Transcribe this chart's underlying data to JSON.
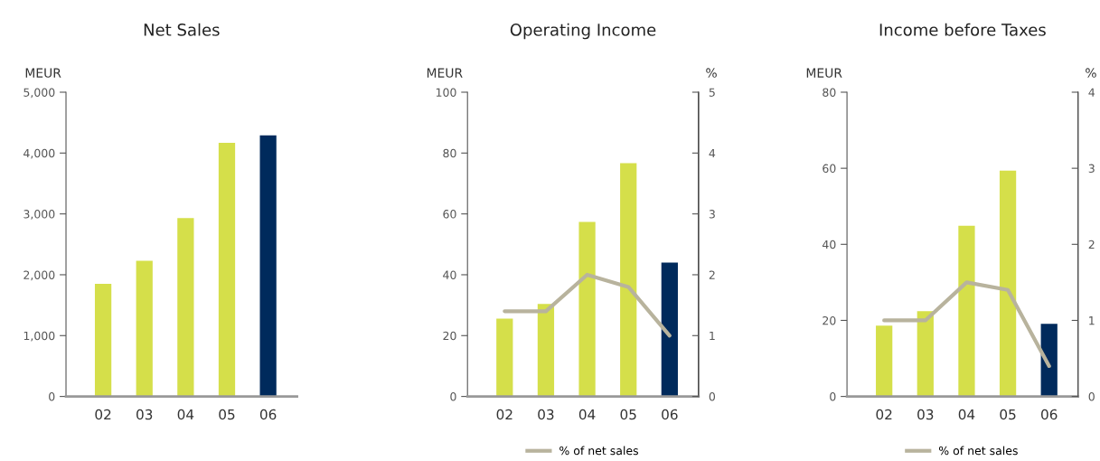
{
  "chart_data": [
    {
      "type": "bar",
      "title": "Net Sales",
      "ylabel": "MEUR",
      "categories": [
        "02",
        "03",
        "04",
        "05",
        "06"
      ],
      "ylim": [
        0,
        5000
      ],
      "yticks": [
        {
          "value": 0,
          "label": "0"
        },
        {
          "value": 1000,
          "label": "1,000"
        },
        {
          "value": 2000,
          "label": "2,000"
        },
        {
          "value": 3000,
          "label": "3,000"
        },
        {
          "value": 4000,
          "label": "4,000"
        },
        {
          "value": 5000,
          "label": "5,000"
        }
      ],
      "grid": false,
      "legend": false,
      "series": [
        {
          "colors": [
            "#d5df4a",
            "#d5df4a",
            "#d5df4a",
            "#d5df4a",
            "#002a5c"
          ],
          "values": [
            1850,
            2230,
            2930,
            4170,
            4290
          ]
        }
      ]
    },
    {
      "type": "bar",
      "title": "Operating Income",
      "ylabel": "MEUR",
      "y2label": "%",
      "categories": [
        "02",
        "03",
        "04",
        "05",
        "06"
      ],
      "ylim": [
        0,
        100
      ],
      "yticks": [
        0,
        20,
        40,
        60,
        80,
        100
      ],
      "y2lim": [
        0,
        5
      ],
      "y2ticks": [
        0,
        1,
        2,
        3,
        4,
        5
      ],
      "grid": false,
      "legend": "bottom",
      "series": [
        {
          "colors": [
            "#d5df4a",
            "#d5df4a",
            "#d5df4a",
            "#d5df4a",
            "#002a5c"
          ],
          "values": [
            25.6,
            30.4,
            57.4,
            76.7,
            44.0
          ]
        },
        {
          "type": "line",
          "name": "% of net sales",
          "axis": "y2",
          "color": "#b8b39d",
          "values": [
            1.4,
            1.4,
            2.0,
            1.8,
            1.0
          ]
        }
      ]
    },
    {
      "type": "bar",
      "title": "Income before Taxes",
      "ylabel": "MEUR",
      "y2label": "%",
      "categories": [
        "02",
        "03",
        "04",
        "05",
        "06"
      ],
      "ylim": [
        0,
        80
      ],
      "yticks": [
        0,
        20,
        40,
        60,
        80
      ],
      "y2lim": [
        0,
        4
      ],
      "y2ticks": [
        0,
        1,
        2,
        3,
        4
      ],
      "grid": false,
      "legend": "bottom",
      "series": [
        {
          "colors": [
            "#d5df4a",
            "#d5df4a",
            "#d5df4a",
            "#d5df4a",
            "#002a5c"
          ],
          "values": [
            18.6,
            22.4,
            44.9,
            59.4,
            19.1
          ]
        },
        {
          "type": "line",
          "name": "% of net sales",
          "axis": "y2",
          "color": "#b8b39d",
          "values": [
            1.0,
            1.0,
            1.5,
            1.4,
            0.4
          ]
        }
      ]
    }
  ]
}
